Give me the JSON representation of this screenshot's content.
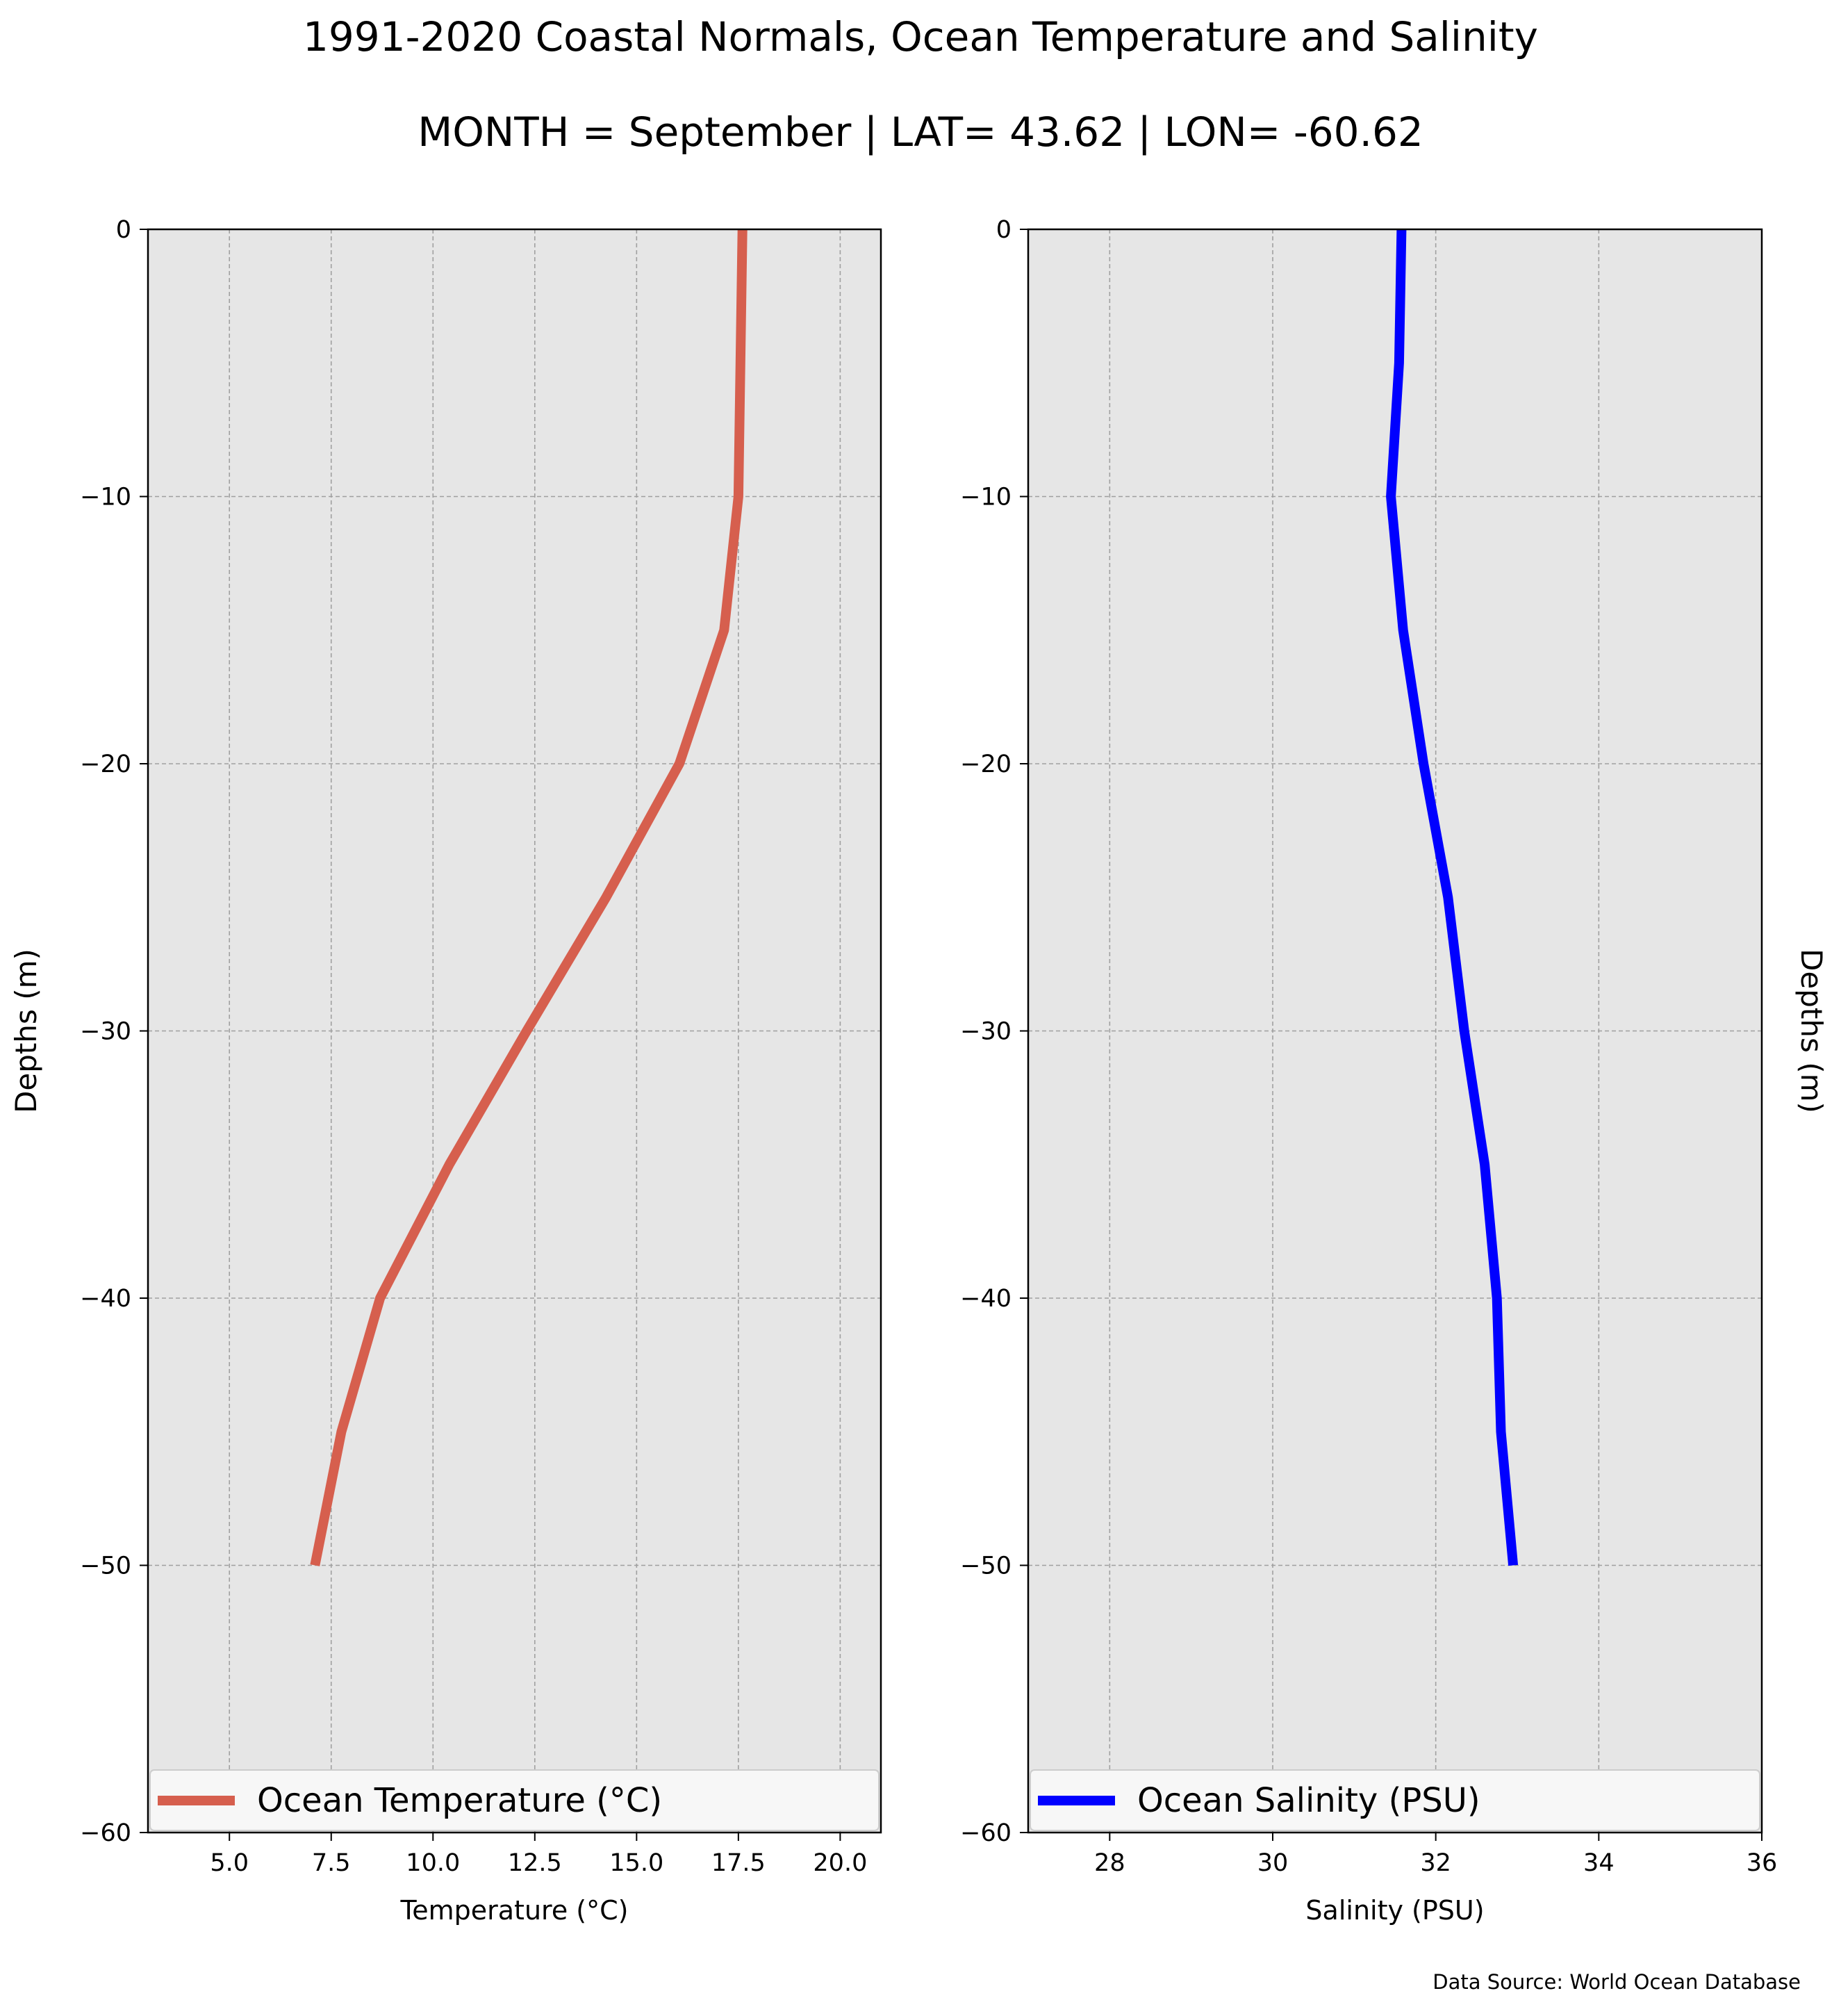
{
  "title": "1991-2020 Coastal Normals, Ocean Temperature and Salinity",
  "subtitle": "MONTH = September | LAT= 43.62 | LON= -60.62",
  "source": "Data Source: World Ocean Database",
  "chart_data": [
    {
      "type": "line",
      "xlabel": "Temperature ($^\\circ$C)",
      "xlabel_display": "Temperature (°C)",
      "ylabel": "Depths (m)",
      "xlim": [
        3,
        21
      ],
      "ylim": [
        -60,
        0
      ],
      "xticks": [
        5.0,
        7.5,
        10.0,
        12.5,
        15.0,
        17.5,
        20.0
      ],
      "xtick_labels": [
        "5.0",
        "7.5",
        "10.0",
        "12.5",
        "15.0",
        "17.5",
        "20.0"
      ],
      "yticks": [
        0,
        -10,
        -20,
        -30,
        -40,
        -50,
        -60
      ],
      "ytick_labels": [
        "0",
        "−10",
        "−20",
        "−30",
        "−40",
        "−50",
        "−60"
      ],
      "grid": true,
      "legend_position": "bottom",
      "series": [
        {
          "name": "Ocean Temperature ($^\\circ$C)",
          "legend_label": "Ocean Temperature (°C)",
          "color": "#d65f4e",
          "x": [
            17.6,
            17.55,
            17.5,
            17.15,
            16.05,
            14.25,
            12.3,
            10.4,
            8.7,
            7.75,
            7.1
          ],
          "y": [
            0,
            -5,
            -10,
            -15,
            -20,
            -25,
            -30,
            -35,
            -40,
            -45,
            -50
          ]
        }
      ]
    },
    {
      "type": "line",
      "xlabel": "Salinity (PSU)",
      "ylabel": "Depths (m)",
      "xlim": [
        27,
        36
      ],
      "ylim": [
        -60,
        0
      ],
      "xticks": [
        28,
        30,
        32,
        34,
        36
      ],
      "xtick_labels": [
        "28",
        "30",
        "32",
        "34",
        "36"
      ],
      "yticks": [
        0,
        -10,
        -20,
        -30,
        -40,
        -50,
        -60
      ],
      "ytick_labels": [
        "0",
        "−10",
        "−20",
        "−30",
        "−40",
        "−50",
        "−60"
      ],
      "grid": true,
      "legend_position": "bottom",
      "series": [
        {
          "name": "Ocean Salinity (PSU)",
          "color": "#0000ff",
          "x": [
            31.58,
            31.55,
            31.45,
            31.6,
            31.85,
            32.15,
            32.35,
            32.6,
            32.75,
            32.8,
            32.95
          ],
          "y": [
            0,
            -5,
            -10,
            -15,
            -20,
            -25,
            -30,
            -35,
            -40,
            -45,
            -50
          ]
        }
      ]
    }
  ]
}
